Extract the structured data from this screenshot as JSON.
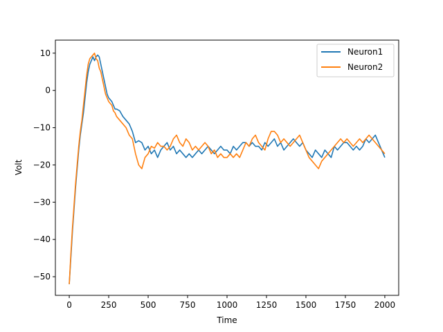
{
  "chart_data": {
    "type": "line",
    "title": "",
    "xlabel": "Time",
    "ylabel": "Volt",
    "xlim": [
      -88,
      2088
    ],
    "ylim": [
      -55,
      13.5
    ],
    "xticks": [
      0,
      250,
      500,
      750,
      1000,
      1250,
      1500,
      1750,
      2000
    ],
    "yticks": [
      -50,
      -40,
      -30,
      -20,
      -10,
      0,
      10
    ],
    "tick_labels": {
      "x": [
        "0",
        "250",
        "500",
        "750",
        "1000",
        "1250",
        "1500",
        "1750",
        "2000"
      ],
      "y": [
        "−50",
        "−40",
        "−30",
        "−20",
        "−10",
        "0",
        "10"
      ]
    },
    "grid": false,
    "legend": {
      "position": "top-right",
      "entries": [
        "Neuron1",
        "Neuron2"
      ]
    },
    "series": [
      {
        "name": "Neuron1",
        "color": "#1f77b4",
        "x": [
          0,
          10,
          20,
          30,
          40,
          50,
          60,
          70,
          80,
          90,
          100,
          110,
          120,
          130,
          140,
          150,
          160,
          170,
          180,
          190,
          200,
          210,
          220,
          230,
          240,
          250,
          260,
          270,
          280,
          290,
          300,
          320,
          340,
          360,
          380,
          400,
          420,
          440,
          460,
          480,
          500,
          520,
          540,
          560,
          580,
          600,
          620,
          640,
          660,
          680,
          700,
          720,
          740,
          760,
          780,
          800,
          820,
          840,
          860,
          880,
          900,
          920,
          940,
          960,
          980,
          1000,
          1020,
          1040,
          1060,
          1080,
          1100,
          1120,
          1140,
          1160,
          1180,
          1200,
          1220,
          1240,
          1260,
          1280,
          1300,
          1320,
          1340,
          1360,
          1380,
          1400,
          1420,
          1440,
          1460,
          1480,
          1500,
          1520,
          1540,
          1560,
          1580,
          1600,
          1620,
          1640,
          1660,
          1680,
          1700,
          1720,
          1740,
          1760,
          1780,
          1800,
          1820,
          1840,
          1860,
          1880,
          1900,
          1920,
          1940,
          1960,
          1980,
          2000
        ],
        "y": [
          -52,
          -45,
          -38,
          -32,
          -26,
          -21,
          -16,
          -12,
          -9,
          -6,
          -2,
          2,
          5,
          7,
          8,
          9,
          8,
          9,
          9.5,
          9,
          7,
          5,
          3,
          1,
          -1,
          -2,
          -2.5,
          -3,
          -4,
          -5,
          -5,
          -5.5,
          -7,
          -8,
          -9,
          -11,
          -14,
          -13.5,
          -14,
          -16,
          -15,
          -17,
          -16,
          -18,
          -16,
          -15,
          -14,
          -16,
          -15,
          -17,
          -16,
          -17,
          -18,
          -17,
          -18,
          -17,
          -16,
          -17,
          -16,
          -15,
          -16,
          -17,
          -16,
          -15,
          -16,
          -16,
          -17,
          -15,
          -16,
          -15,
          -14,
          -14,
          -15,
          -14,
          -15,
          -15,
          -16,
          -14,
          -15,
          -14,
          -13,
          -15,
          -14,
          -16,
          -15,
          -14,
          -13,
          -14,
          -15,
          -14,
          -16,
          -17,
          -18,
          -16,
          -17,
          -18,
          -16,
          -17,
          -18,
          -15,
          -16,
          -15,
          -14,
          -14,
          -15,
          -16,
          -15,
          -16,
          -15,
          -13,
          -14,
          -13,
          -12,
          -14,
          -16,
          -18
        ]
      },
      {
        "name": "Neuron2",
        "color": "#ff7f0e",
        "x": [
          0,
          10,
          20,
          30,
          40,
          50,
          60,
          70,
          80,
          90,
          100,
          110,
          120,
          130,
          140,
          150,
          160,
          170,
          180,
          190,
          200,
          210,
          220,
          230,
          240,
          250,
          260,
          270,
          280,
          290,
          300,
          320,
          340,
          360,
          380,
          400,
          420,
          440,
          460,
          480,
          500,
          520,
          540,
          560,
          580,
          600,
          620,
          640,
          660,
          680,
          700,
          720,
          740,
          760,
          780,
          800,
          820,
          840,
          860,
          880,
          900,
          920,
          940,
          960,
          980,
          1000,
          1020,
          1040,
          1060,
          1080,
          1100,
          1120,
          1140,
          1160,
          1180,
          1200,
          1220,
          1240,
          1260,
          1280,
          1300,
          1320,
          1340,
          1360,
          1380,
          1400,
          1420,
          1440,
          1460,
          1480,
          1500,
          1520,
          1540,
          1560,
          1580,
          1600,
          1620,
          1640,
          1660,
          1680,
          1700,
          1720,
          1740,
          1760,
          1780,
          1800,
          1820,
          1840,
          1860,
          1880,
          1900,
          1920,
          1940,
          1960,
          1980,
          2000
        ],
        "y": [
          -52,
          -44,
          -37,
          -31,
          -25,
          -20,
          -15,
          -11,
          -8,
          -4,
          0,
          4,
          7,
          8.5,
          9,
          9.5,
          10,
          8.5,
          8,
          6,
          5,
          3,
          1,
          -1,
          -2,
          -3,
          -3.5,
          -4,
          -5.5,
          -6,
          -7,
          -8,
          -9,
          -10,
          -12,
          -13,
          -17,
          -20,
          -21,
          -18,
          -17,
          -15,
          -15.5,
          -14,
          -15,
          -15,
          -16,
          -15,
          -13,
          -12,
          -14,
          -15,
          -13,
          -14,
          -16,
          -15,
          -16,
          -15,
          -14,
          -15,
          -17,
          -16,
          -18,
          -17,
          -18,
          -18,
          -17,
          -18,
          -17,
          -18,
          -16,
          -14,
          -15,
          -13,
          -12,
          -14,
          -15,
          -16,
          -13,
          -11,
          -11,
          -12,
          -14,
          -13,
          -14,
          -15,
          -14,
          -13,
          -12,
          -14,
          -16,
          -18,
          -19,
          -20,
          -21,
          -19,
          -18,
          -17,
          -16,
          -15,
          -14,
          -13,
          -14,
          -13,
          -14,
          -15,
          -14,
          -13,
          -14,
          -13,
          -12,
          -13,
          -14,
          -15,
          -16,
          -17
        ]
      }
    ]
  }
}
